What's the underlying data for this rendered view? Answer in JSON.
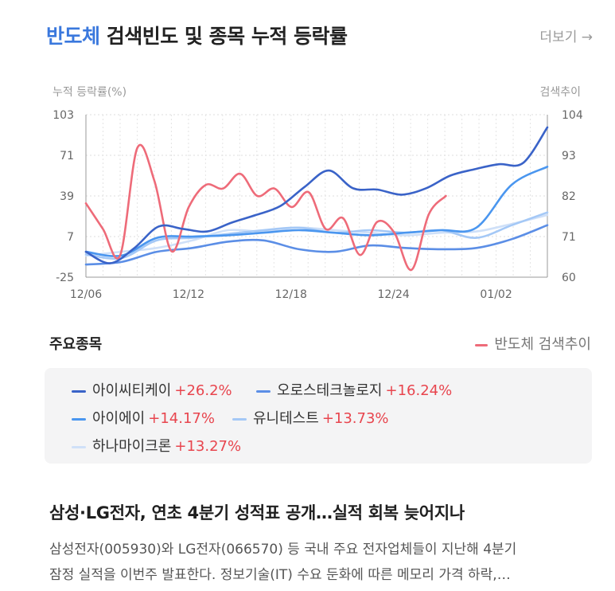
{
  "header": {
    "title_highlight": "반도체",
    "title_rest": " 검색빈도 및 종목 누적 등락률",
    "more_label": "더보기 →"
  },
  "chart_data": {
    "type": "line",
    "left_axis_title": "누적 등락률(%)",
    "right_axis_title": "검색추이",
    "left_ticks": [
      "103",
      "71",
      "39",
      "7",
      "-25"
    ],
    "right_ticks": [
      "104",
      "93",
      "82",
      "71",
      "60"
    ],
    "ylim_left": [
      -25,
      103
    ],
    "ylim_right": [
      60,
      104
    ],
    "x_tick_labels": [
      "12/06",
      "12/12",
      "12/18",
      "12/24",
      "01/02"
    ],
    "x_tick_index": [
      0,
      6,
      12,
      18,
      24
    ],
    "n_points": 28,
    "grid": true,
    "series": [
      {
        "name": "반도체 검색추이",
        "axis": "right",
        "color": "#ee6b79",
        "values": [
          80,
          73,
          66,
          95,
          86,
          67,
          79,
          85,
          84,
          88,
          82,
          84,
          79,
          83,
          73,
          76,
          66,
          75,
          72,
          62,
          77,
          82
        ]
      },
      {
        "name": "아이씨티케이",
        "axis": "left",
        "color": "#3a63c8",
        "values": [
          -5,
          -14,
          -2,
          15,
          13,
          11,
          18,
          24,
          31,
          46,
          59,
          45,
          44,
          40,
          45,
          55,
          60,
          64,
          65,
          93
        ]
      },
      {
        "name": "오로스테크놀로지",
        "axis": "left",
        "color": "#5b8ee6",
        "values": [
          -15,
          -13,
          -5,
          -2,
          3,
          4,
          -3,
          -5,
          0,
          -2,
          -3,
          -2,
          5,
          16
        ]
      },
      {
        "name": "아이에이",
        "axis": "left",
        "color": "#4a96ef",
        "values": [
          -5,
          -8,
          6,
          7,
          8,
          10,
          12,
          10,
          8,
          10,
          12,
          14,
          48,
          62
        ]
      },
      {
        "name": "유니테스트",
        "axis": "left",
        "color": "#a4c8f6",
        "values": [
          -7,
          -10,
          4,
          6,
          9,
          12,
          14,
          10,
          12,
          10,
          12,
          6,
          16,
          26
        ]
      },
      {
        "name": "하나마이크론",
        "axis": "left",
        "color": "#cfe0f8",
        "values": [
          -8,
          -5,
          -2,
          4,
          12,
          11,
          14,
          12,
          10,
          8,
          10,
          11,
          17,
          24
        ]
      }
    ]
  },
  "legend": {
    "title": "주요종목",
    "search_label": "반도체 검색추이"
  },
  "stocks": [
    {
      "name": "아이씨티케이",
      "change": "+26.2%",
      "color": "#3a63c8"
    },
    {
      "name": "오로스테크놀로지",
      "change": "+16.24%",
      "color": "#5b8ee6"
    },
    {
      "name": "아이에이",
      "change": "+14.17%",
      "color": "#4a96ef"
    },
    {
      "name": "유니테스트",
      "change": "+13.73%",
      "color": "#a4c8f6"
    },
    {
      "name": "하나마이크론",
      "change": "+13.27%",
      "color": "#cfe0f8"
    }
  ],
  "news": {
    "title": "삼성·LG전자, 연초 4분기 성적표 공개…실적 회복 늦어지나",
    "line1": "삼성전자(005930)와 LG전자(066570) 등 국내 주요 전자업체들이 지난해 4분기",
    "line2": "잠정 실적을 이번주 발표한다. 정보기술(IT) 수요 둔화에 따른 메모리 가격 하락,…"
  }
}
